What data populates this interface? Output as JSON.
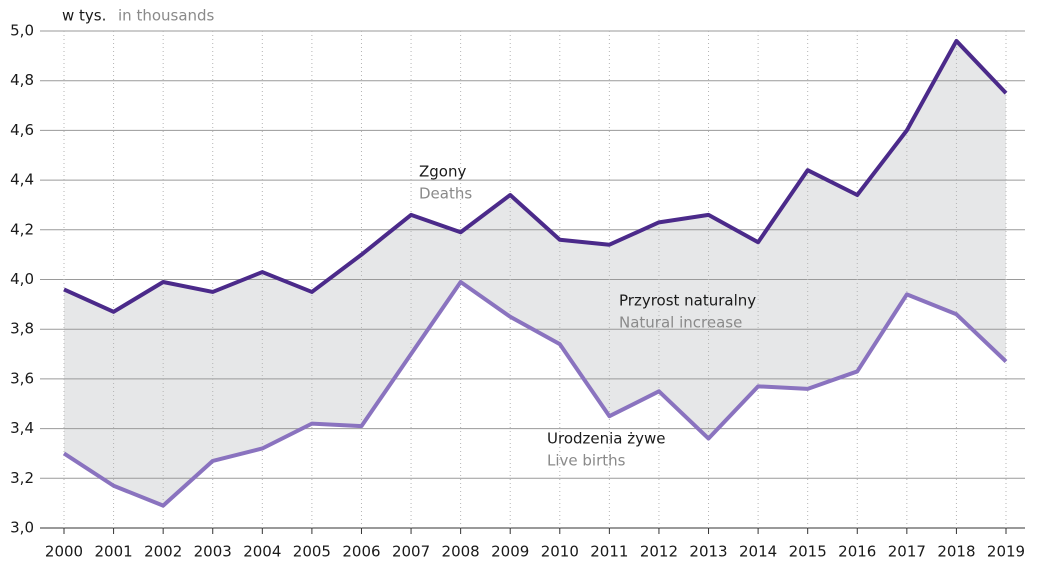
{
  "chart_data": {
    "type": "line",
    "y_label": "w tys.",
    "y_label_en": "in thousands",
    "categories": [
      "2000",
      "2001",
      "2002",
      "2003",
      "2004",
      "2005",
      "2006",
      "2007",
      "2008",
      "2009",
      "2010",
      "2011",
      "2012",
      "2013",
      "2014",
      "2015",
      "2016",
      "2017",
      "2018",
      "2019"
    ],
    "series": [
      {
        "name": "Zgony",
        "name_en": "Deaths",
        "color": "#4b2a8a",
        "values": [
          3.96,
          3.87,
          3.99,
          3.95,
          4.03,
          3.95,
          4.1,
          4.26,
          4.19,
          4.34,
          4.16,
          4.14,
          4.23,
          4.26,
          4.15,
          4.44,
          4.34,
          4.6,
          4.96,
          4.75
        ]
      },
      {
        "name": "Urodzenia żywe",
        "name_en": "Live births",
        "color": "#8a73bf",
        "values": [
          3.3,
          3.17,
          3.09,
          3.27,
          3.32,
          3.42,
          3.41,
          3.7,
          3.99,
          3.85,
          3.74,
          3.45,
          3.55,
          3.36,
          3.57,
          3.56,
          3.63,
          3.94,
          3.86,
          3.67
        ]
      }
    ],
    "area_label": "Przyrost naturalny",
    "area_label_en": "Natural increase",
    "area_color": "#e6e7e8",
    "ylim": [
      3.0,
      5.0
    ],
    "yticks": [
      {
        "value": 3.0,
        "label": "3,0"
      },
      {
        "value": 3.2,
        "label": "3,2"
      },
      {
        "value": 3.4,
        "label": "3,4"
      },
      {
        "value": 3.6,
        "label": "3,6"
      },
      {
        "value": 3.8,
        "label": "3,8"
      },
      {
        "value": 4.0,
        "label": "4,0"
      },
      {
        "value": 4.2,
        "label": "4,2"
      },
      {
        "value": 4.4,
        "label": "4,4"
      },
      {
        "value": 4.6,
        "label": "4,6"
      },
      {
        "value": 4.8,
        "label": "4,8"
      },
      {
        "value": 5.0,
        "label": "5,0"
      }
    ],
    "grid": true
  }
}
